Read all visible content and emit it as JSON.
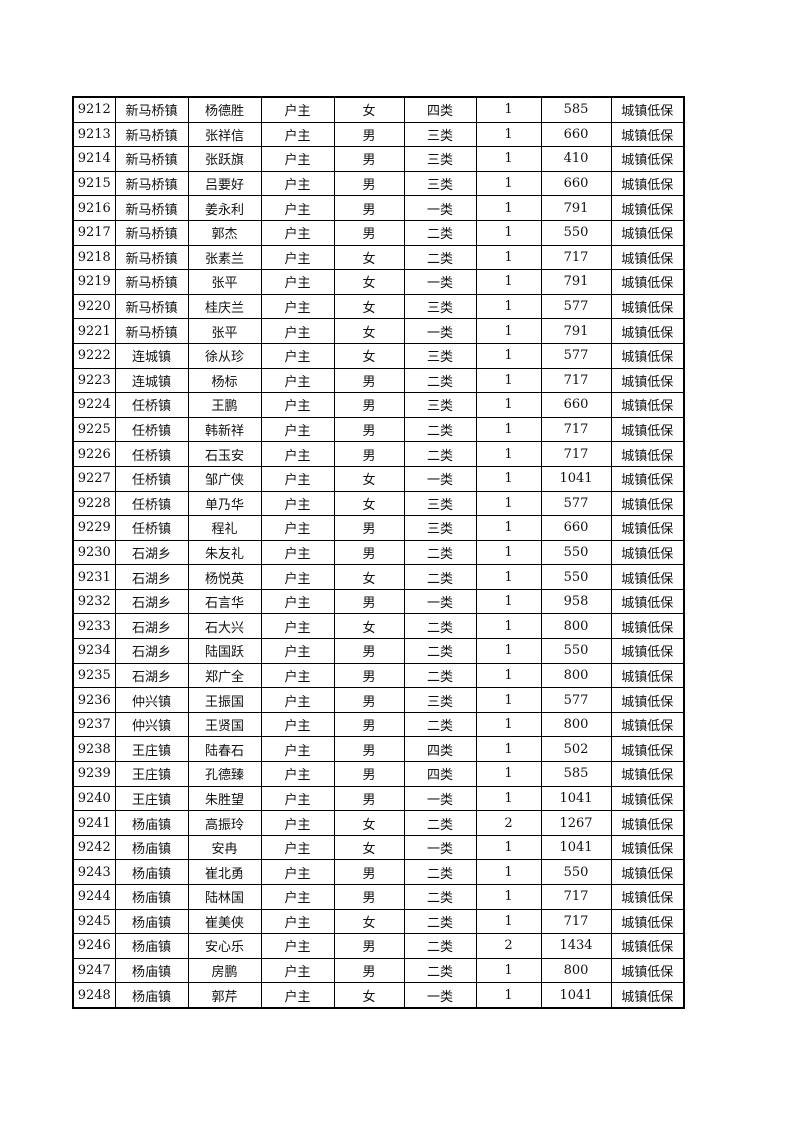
{
  "rows": [
    [
      "9212",
      "新马桥镇",
      "杨德胜",
      "户主",
      "女",
      "四类",
      "1",
      "585",
      "城镇低保"
    ],
    [
      "9213",
      "新马桥镇",
      "张祥信",
      "户主",
      "男",
      "三类",
      "1",
      "660",
      "城镇低保"
    ],
    [
      "9214",
      "新马桥镇",
      "张跃旗",
      "户主",
      "男",
      "三类",
      "1",
      "410",
      "城镇低保"
    ],
    [
      "9215",
      "新马桥镇",
      "吕要好",
      "户主",
      "男",
      "三类",
      "1",
      "660",
      "城镇低保"
    ],
    [
      "9216",
      "新马桥镇",
      "姜永利",
      "户主",
      "男",
      "一类",
      "1",
      "791",
      "城镇低保"
    ],
    [
      "9217",
      "新马桥镇",
      "郭杰",
      "户主",
      "男",
      "二类",
      "1",
      "550",
      "城镇低保"
    ],
    [
      "9218",
      "新马桥镇",
      "张素兰",
      "户主",
      "女",
      "二类",
      "1",
      "717",
      "城镇低保"
    ],
    [
      "9219",
      "新马桥镇",
      "张平",
      "户主",
      "女",
      "一类",
      "1",
      "791",
      "城镇低保"
    ],
    [
      "9220",
      "新马桥镇",
      "桂庆兰",
      "户主",
      "女",
      "三类",
      "1",
      "577",
      "城镇低保"
    ],
    [
      "9221",
      "新马桥镇",
      "张平",
      "户主",
      "女",
      "一类",
      "1",
      "791",
      "城镇低保"
    ],
    [
      "9222",
      "连城镇",
      "徐从珍",
      "户主",
      "女",
      "三类",
      "1",
      "577",
      "城镇低保"
    ],
    [
      "9223",
      "连城镇",
      "杨标",
      "户主",
      "男",
      "二类",
      "1",
      "717",
      "城镇低保"
    ],
    [
      "9224",
      "任桥镇",
      "王鹏",
      "户主",
      "男",
      "三类",
      "1",
      "660",
      "城镇低保"
    ],
    [
      "9225",
      "任桥镇",
      "韩新祥",
      "户主",
      "男",
      "二类",
      "1",
      "717",
      "城镇低保"
    ],
    [
      "9226",
      "任桥镇",
      "石玉安",
      "户主",
      "男",
      "二类",
      "1",
      "717",
      "城镇低保"
    ],
    [
      "9227",
      "任桥镇",
      "邹广侠",
      "户主",
      "女",
      "一类",
      "1",
      "1041",
      "城镇低保"
    ],
    [
      "9228",
      "任桥镇",
      "单乃华",
      "户主",
      "女",
      "三类",
      "1",
      "577",
      "城镇低保"
    ],
    [
      "9229",
      "任桥镇",
      "程礼",
      "户主",
      "男",
      "三类",
      "1",
      "660",
      "城镇低保"
    ],
    [
      "9230",
      "石湖乡",
      "朱友礼",
      "户主",
      "男",
      "二类",
      "1",
      "550",
      "城镇低保"
    ],
    [
      "9231",
      "石湖乡",
      "杨悦英",
      "户主",
      "女",
      "二类",
      "1",
      "550",
      "城镇低保"
    ],
    [
      "9232",
      "石湖乡",
      "石言华",
      "户主",
      "男",
      "一类",
      "1",
      "958",
      "城镇低保"
    ],
    [
      "9233",
      "石湖乡",
      "石大兴",
      "户主",
      "女",
      "二类",
      "1",
      "800",
      "城镇低保"
    ],
    [
      "9234",
      "石湖乡",
      "陆国跃",
      "户主",
      "男",
      "二类",
      "1",
      "550",
      "城镇低保"
    ],
    [
      "9235",
      "石湖乡",
      "郑广全",
      "户主",
      "男",
      "二类",
      "1",
      "800",
      "城镇低保"
    ],
    [
      "9236",
      "仲兴镇",
      "王振国",
      "户主",
      "男",
      "三类",
      "1",
      "577",
      "城镇低保"
    ],
    [
      "9237",
      "仲兴镇",
      "王贤国",
      "户主",
      "男",
      "二类",
      "1",
      "800",
      "城镇低保"
    ],
    [
      "9238",
      "王庄镇",
      "陆春石",
      "户主",
      "男",
      "四类",
      "1",
      "502",
      "城镇低保"
    ],
    [
      "9239",
      "王庄镇",
      "孔德臻",
      "户主",
      "男",
      "四类",
      "1",
      "585",
      "城镇低保"
    ],
    [
      "9240",
      "王庄镇",
      "朱胜望",
      "户主",
      "男",
      "一类",
      "1",
      "1041",
      "城镇低保"
    ],
    [
      "9241",
      "杨庙镇",
      "高振玲",
      "户主",
      "女",
      "二类",
      "2",
      "1267",
      "城镇低保"
    ],
    [
      "9242",
      "杨庙镇",
      "安冉",
      "户主",
      "女",
      "一类",
      "1",
      "1041",
      "城镇低保"
    ],
    [
      "9243",
      "杨庙镇",
      "崔北勇",
      "户主",
      "男",
      "二类",
      "1",
      "550",
      "城镇低保"
    ],
    [
      "9244",
      "杨庙镇",
      "陆林国",
      "户主",
      "男",
      "二类",
      "1",
      "717",
      "城镇低保"
    ],
    [
      "9245",
      "杨庙镇",
      "崔美侠",
      "户主",
      "女",
      "二类",
      "1",
      "717",
      "城镇低保"
    ],
    [
      "9246",
      "杨庙镇",
      "安心乐",
      "户主",
      "男",
      "二类",
      "2",
      "1434",
      "城镇低保"
    ],
    [
      "9247",
      "杨庙镇",
      "房鹏",
      "户主",
      "男",
      "二类",
      "1",
      "800",
      "城镇低保"
    ],
    [
      "9248",
      "杨庙镇",
      "郭芹",
      "户主",
      "女",
      "一类",
      "1",
      "1041",
      "城镇低保"
    ]
  ]
}
